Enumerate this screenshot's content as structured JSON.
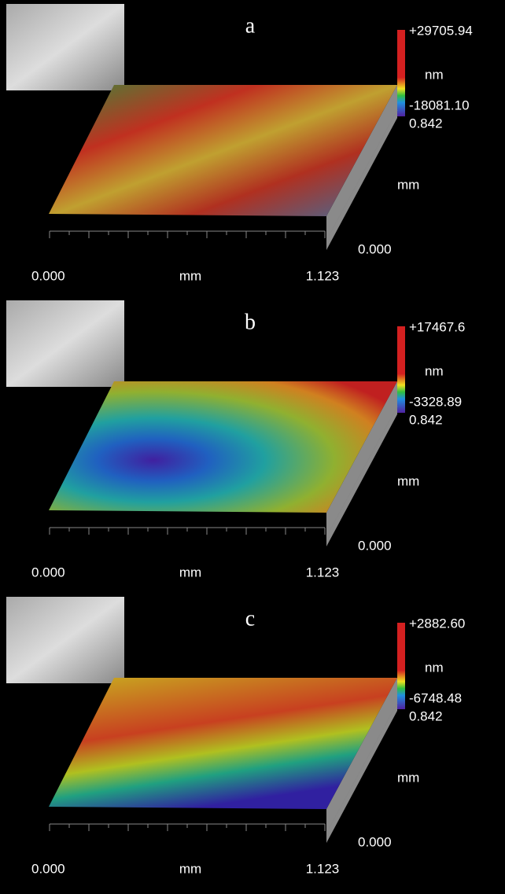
{
  "panels": [
    {
      "label": "a",
      "scale_max": "+29705.94",
      "scale_unit": "nm",
      "scale_min": "-18081.10",
      "y_axis": {
        "max": "0.842",
        "unit": "mm",
        "min": "0.000"
      },
      "x_axis": {
        "min": "0.000",
        "unit": "mm",
        "max": "1.123"
      }
    },
    {
      "label": "b",
      "scale_max": "+17467.6",
      "scale_unit": "nm",
      "scale_min": "-3328.89",
      "y_axis": {
        "max": "0.842",
        "unit": "mm",
        "min": "0.000"
      },
      "x_axis": {
        "min": "0.000",
        "unit": "mm",
        "max": "1.123"
      }
    },
    {
      "label": "c",
      "scale_max": "+2882.60",
      "scale_unit": "nm",
      "scale_min": "-6748.48",
      "y_axis": {
        "max": "0.842",
        "unit": "mm",
        "min": "0.000"
      },
      "x_axis": {
        "min": "0.000",
        "unit": "mm",
        "max": "1.123"
      }
    }
  ]
}
